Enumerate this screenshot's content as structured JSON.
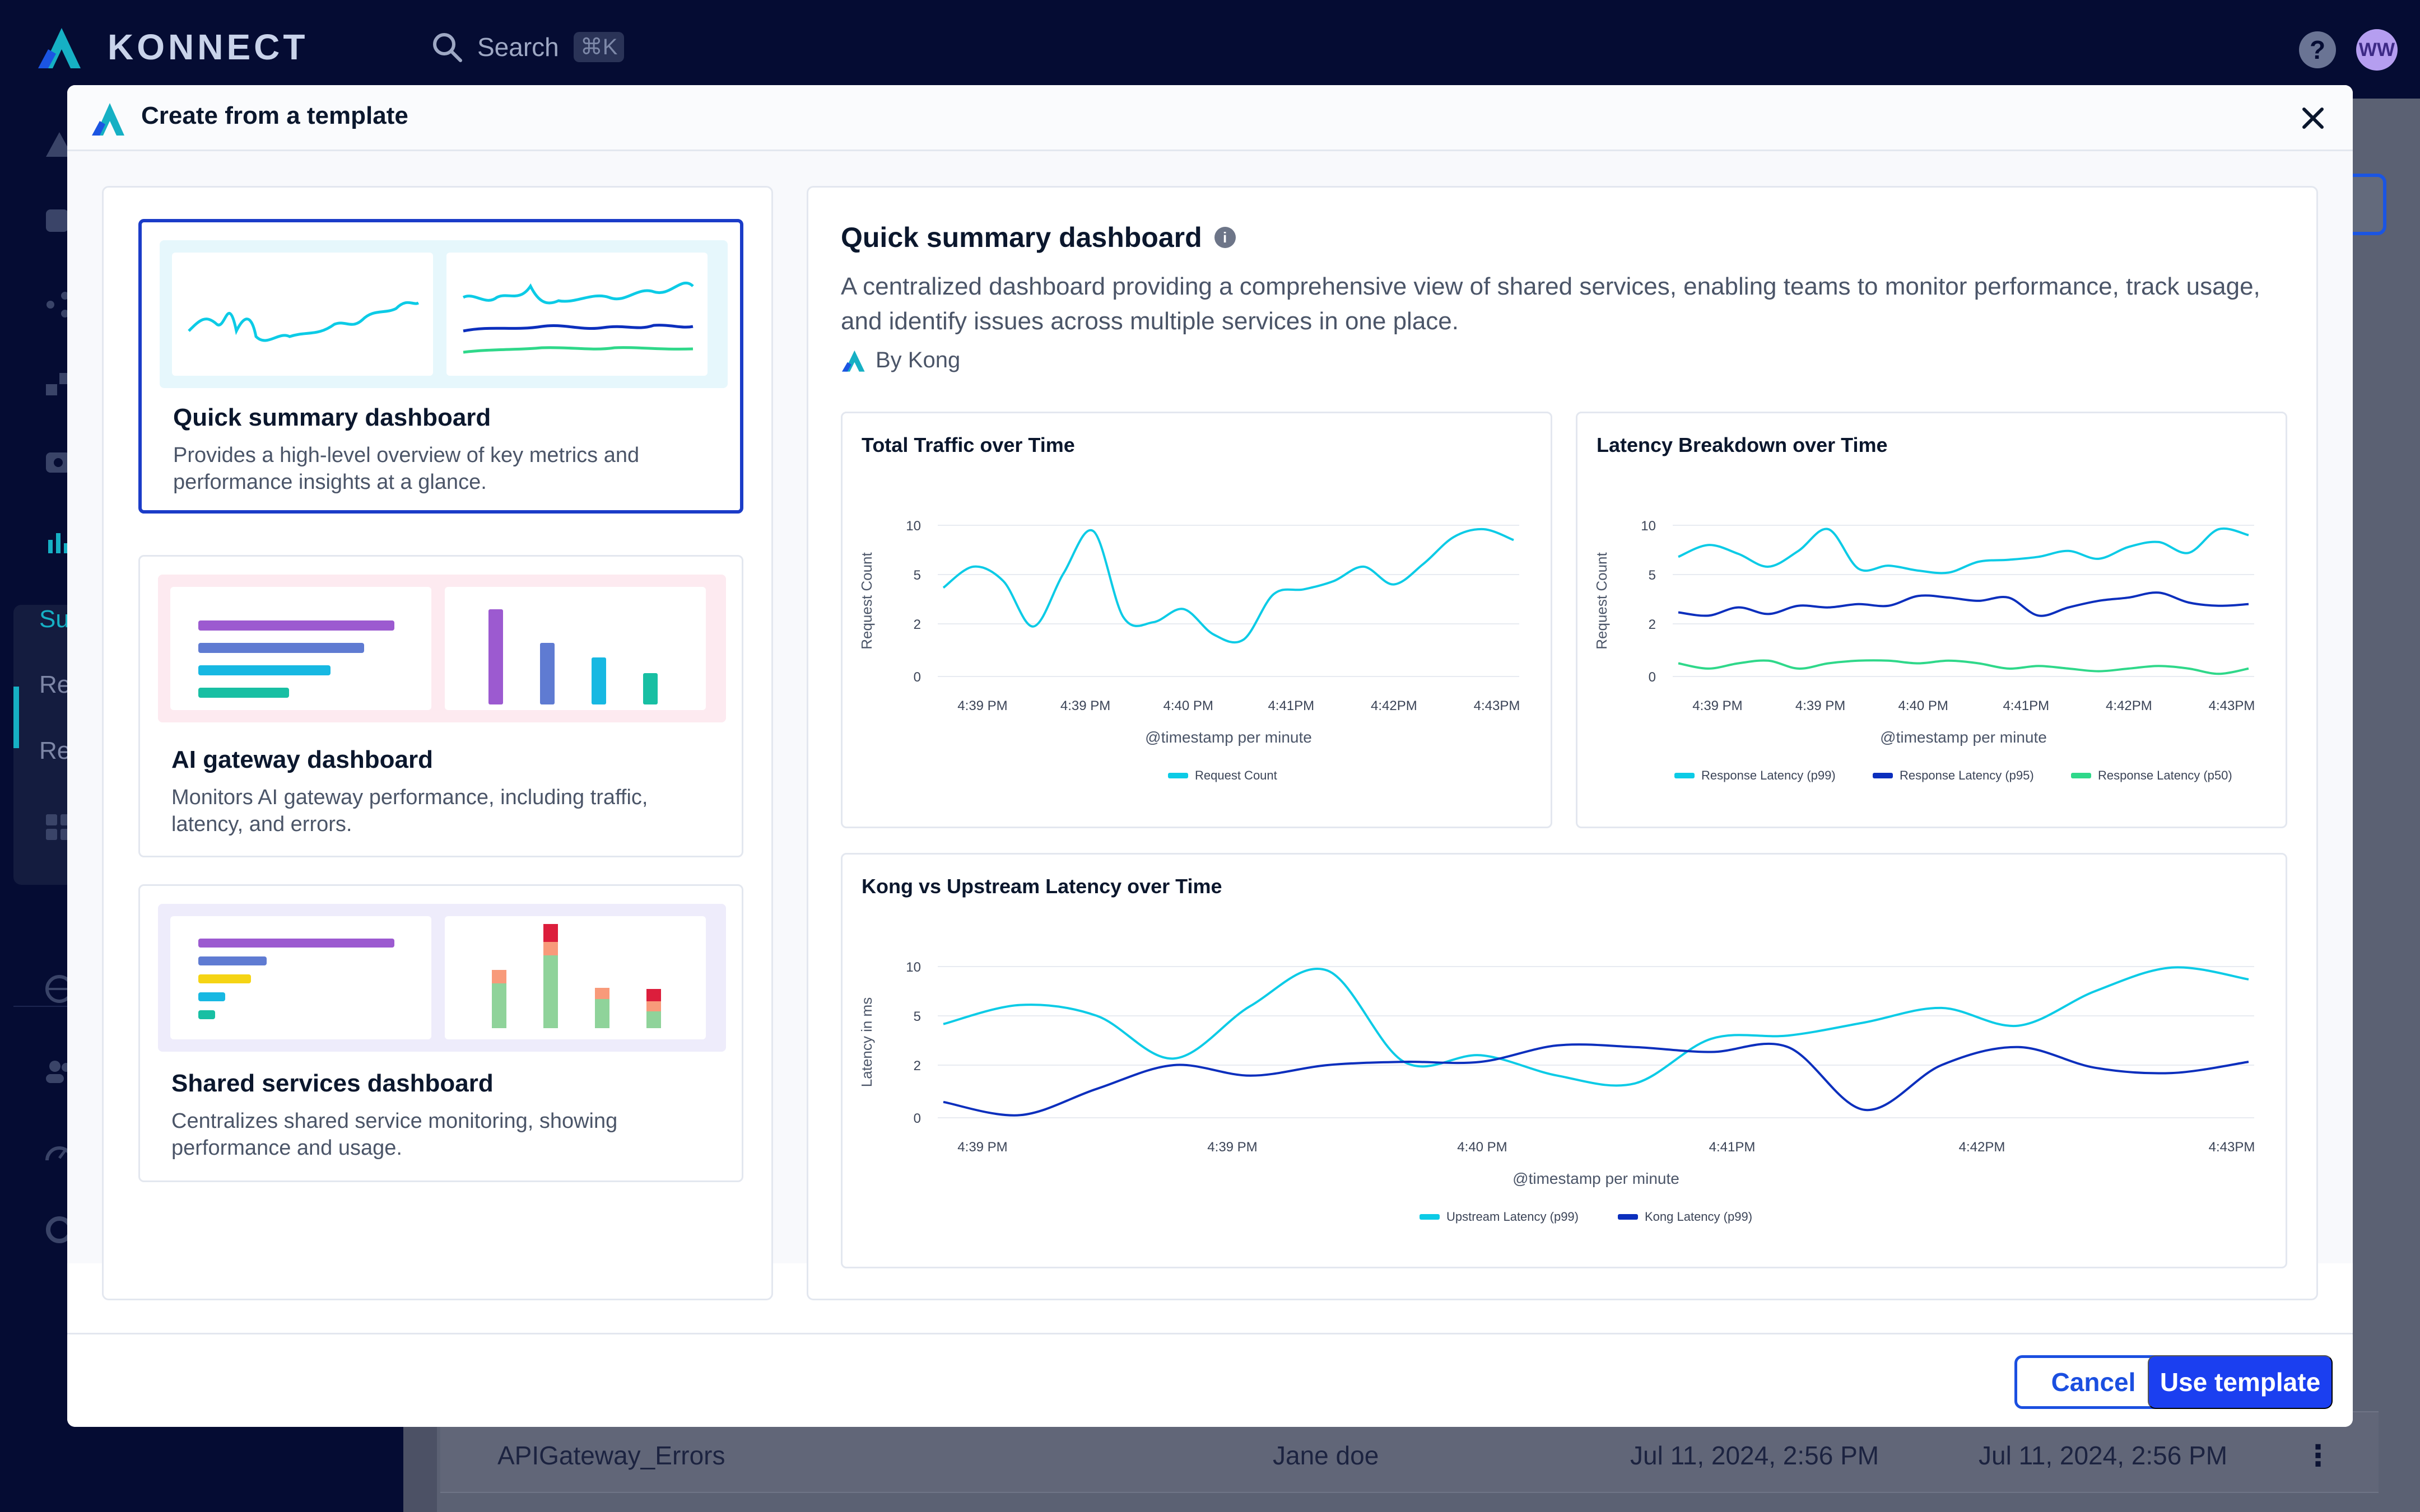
{
  "app": {
    "brand": "KONNECT",
    "search_label": "Search",
    "search_shortcut": "⌘K",
    "help_icon": "help-icon",
    "user_initials": "WW",
    "sidebar_sub_items": [
      "Su",
      "Re",
      "Re"
    ]
  },
  "background_table": {
    "row": {
      "name": "APIGateway_Errors",
      "owner": "Jane doe",
      "created": "Jul 11, 2024, 2:56 PM",
      "modified": "Jul 11, 2024, 2:56 PM"
    }
  },
  "modal": {
    "title": "Create from a template",
    "close_icon": "close-icon",
    "cancel_label": "Cancel",
    "use_label": "Use template"
  },
  "templates": [
    {
      "title": "Quick summary dashboard",
      "description": "Provides a high-level overview of key metrics and performance insights at a glance.",
      "selected": true
    },
    {
      "title": "AI gateway dashboard",
      "description": "Monitors AI gateway performance, including traffic, latency, and errors.",
      "selected": false
    },
    {
      "title": "Shared services dashboard",
      "description": "Centralizes shared service monitoring, showing performance and usage.",
      "selected": false
    }
  ],
  "preview": {
    "title": "Quick summary dashboard",
    "description": "A centralized dashboard providing a comprehensive view of shared services, enabling teams to monitor performance, track usage, and identify issues across multiple services in one place.",
    "by": "By Kong"
  },
  "colors": {
    "cyan": "#0ccbe6",
    "navy": "#0c2fbd",
    "green": "#2fd88a",
    "accent": "#1b3ff0"
  },
  "chart_data": [
    {
      "type": "line",
      "title": "Total Traffic over Time",
      "ylabel": "Request Count",
      "xlabel": "@timestamp per minute",
      "y_ticks": [
        "10",
        "5",
        "2",
        "0"
      ],
      "x_ticks": [
        "4:39 PM",
        "4:39 PM",
        "4:40 PM",
        "4:41PM",
        "4:42PM",
        "4:43PM"
      ],
      "series": [
        {
          "name": "Request Count",
          "color": "#0ccbe6",
          "values": [
            4.2,
            5.8,
            4.6,
            1.9,
            5.1,
            9.4,
            2.4,
            2.1,
            2.9,
            1.6,
            1.4,
            3.8,
            4.1,
            4.6,
            5.8,
            4.4,
            6.1,
            8.8,
            9.6,
            8.5
          ]
        }
      ]
    },
    {
      "type": "line",
      "title": "Latency Breakdown over Time",
      "ylabel": "Request Count",
      "xlabel": "@timestamp per minute",
      "y_ticks": [
        "10",
        "5",
        "2",
        "0"
      ],
      "x_ticks": [
        "4:39 PM",
        "4:39 PM",
        "4:40 PM",
        "4:41PM",
        "4:42PM",
        "4:43PM"
      ],
      "series": [
        {
          "name": "Response Latency (p99)",
          "color": "#0ccbe6",
          "values": [
            6.8,
            8.0,
            7.1,
            5.8,
            7.4,
            9.6,
            5.6,
            5.9,
            5.4,
            5.2,
            6.3,
            6.5,
            6.8,
            7.4,
            6.6,
            7.8,
            8.3,
            7.2,
            9.6,
            9.0
          ]
        },
        {
          "name": "Response Latency (p95)",
          "color": "#0c2fbd",
          "values": [
            2.7,
            2.5,
            3.0,
            2.6,
            3.1,
            3.0,
            3.2,
            3.1,
            3.7,
            3.6,
            3.4,
            3.6,
            2.5,
            3.0,
            3.4,
            3.6,
            3.9,
            3.3,
            3.1,
            3.2
          ]
        },
        {
          "name": "Response Latency (p50)",
          "color": "#2fd88a",
          "values": [
            0.5,
            0.3,
            0.5,
            0.6,
            0.3,
            0.5,
            0.6,
            0.6,
            0.5,
            0.6,
            0.5,
            0.3,
            0.4,
            0.3,
            0.2,
            0.3,
            0.4,
            0.3,
            0.1,
            0.3
          ]
        }
      ]
    },
    {
      "type": "line",
      "title": "Kong vs Upstream Latency over Time",
      "ylabel": "Latency in ms",
      "xlabel": "@timestamp per minute",
      "y_ticks": [
        "10",
        "5",
        "2",
        "0"
      ],
      "x_ticks": [
        "4:39 PM",
        "4:39 PM",
        "4:40 PM",
        "4:41PM",
        "4:42PM",
        "4:43PM"
      ],
      "series": [
        {
          "name": "Upstream Latency (p99)",
          "color": "#0ccbe6",
          "values": [
            4.5,
            6.1,
            5.0,
            2.4,
            6.0,
            9.6,
            2.2,
            2.6,
            1.6,
            1.3,
            3.6,
            3.8,
            4.6,
            5.8,
            4.4,
            7.5,
            9.9,
            8.7
          ]
        },
        {
          "name": "Kong Latency (p99)",
          "color": "#0c2fbd",
          "values": [
            0.6,
            0.1,
            1.1,
            2.0,
            1.6,
            2.0,
            2.2,
            2.2,
            3.2,
            3.1,
            2.8,
            3.1,
            0.3,
            2.0,
            3.1,
            1.9,
            1.7,
            2.2
          ]
        }
      ]
    }
  ]
}
